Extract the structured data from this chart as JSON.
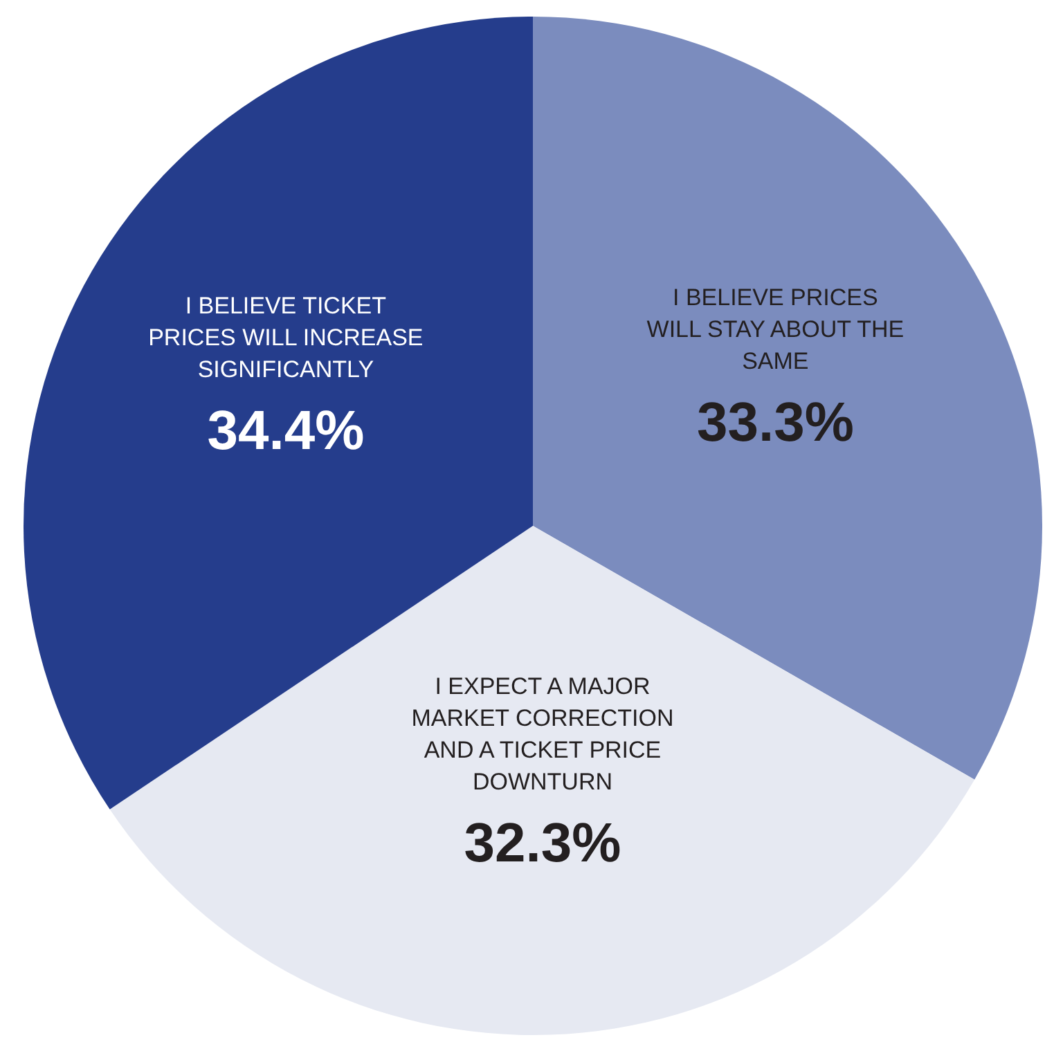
{
  "chart_data": {
    "type": "pie",
    "categories": [
      "I BELIEVE PRICES WILL STAY ABOUT THE SAME",
      "I EXPECT A MAJOR MARKET CORRECTION AND A TICKET PRICE DOWNTURN",
      "I BELIEVE TICKET PRICES WILL INCREASE SIGNIFICANTLY"
    ],
    "values": [
      33.3,
      32.3,
      34.4
    ],
    "value_labels": [
      "33.3%",
      "32.3%",
      "34.4%"
    ],
    "colors": [
      "#7b8cbe",
      "#e6e9f2",
      "#253d8c"
    ]
  }
}
